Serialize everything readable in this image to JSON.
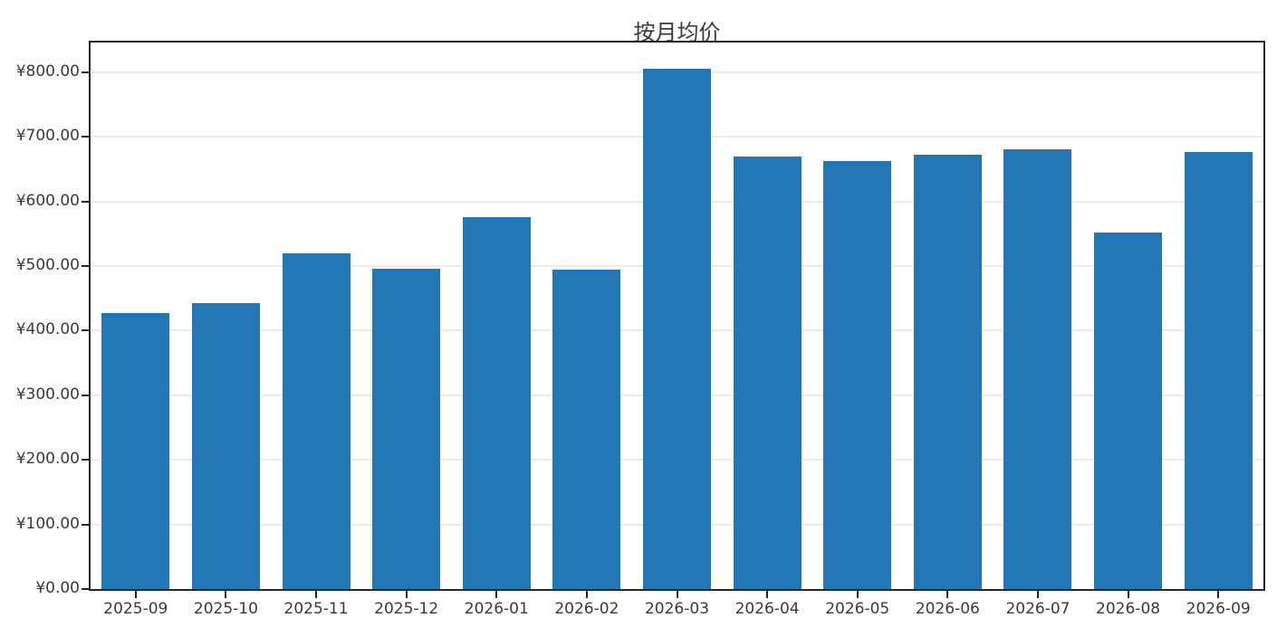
{
  "chart_data": {
    "type": "bar",
    "title": "按月均价",
    "categories": [
      "2025-09",
      "2025-10",
      "2025-11",
      "2025-12",
      "2026-01",
      "2026-02",
      "2026-03",
      "2026-04",
      "2026-05",
      "2026-06",
      "2026-07",
      "2026-08",
      "2026-09"
    ],
    "values": [
      427,
      443,
      520,
      496,
      575,
      495,
      806,
      670,
      662,
      672,
      681,
      552,
      676
    ],
    "xlabel": "",
    "ylabel": "",
    "ylim": [
      0,
      846
    ],
    "yticks": [
      0,
      100,
      200,
      300,
      400,
      500,
      600,
      700,
      800
    ],
    "ytick_labels": [
      "¥0.00",
      "¥100.00",
      "¥200.00",
      "¥300.00",
      "¥400.00",
      "¥500.00",
      "¥600.00",
      "¥700.00",
      "¥800.00"
    ],
    "grid": "horizontal-only",
    "legend": null,
    "colors": {
      "bar": "#2277b4",
      "spine": "#262626",
      "gridline": "#ececec",
      "text": "#3a3a3a",
      "background": "#ffffff"
    }
  }
}
